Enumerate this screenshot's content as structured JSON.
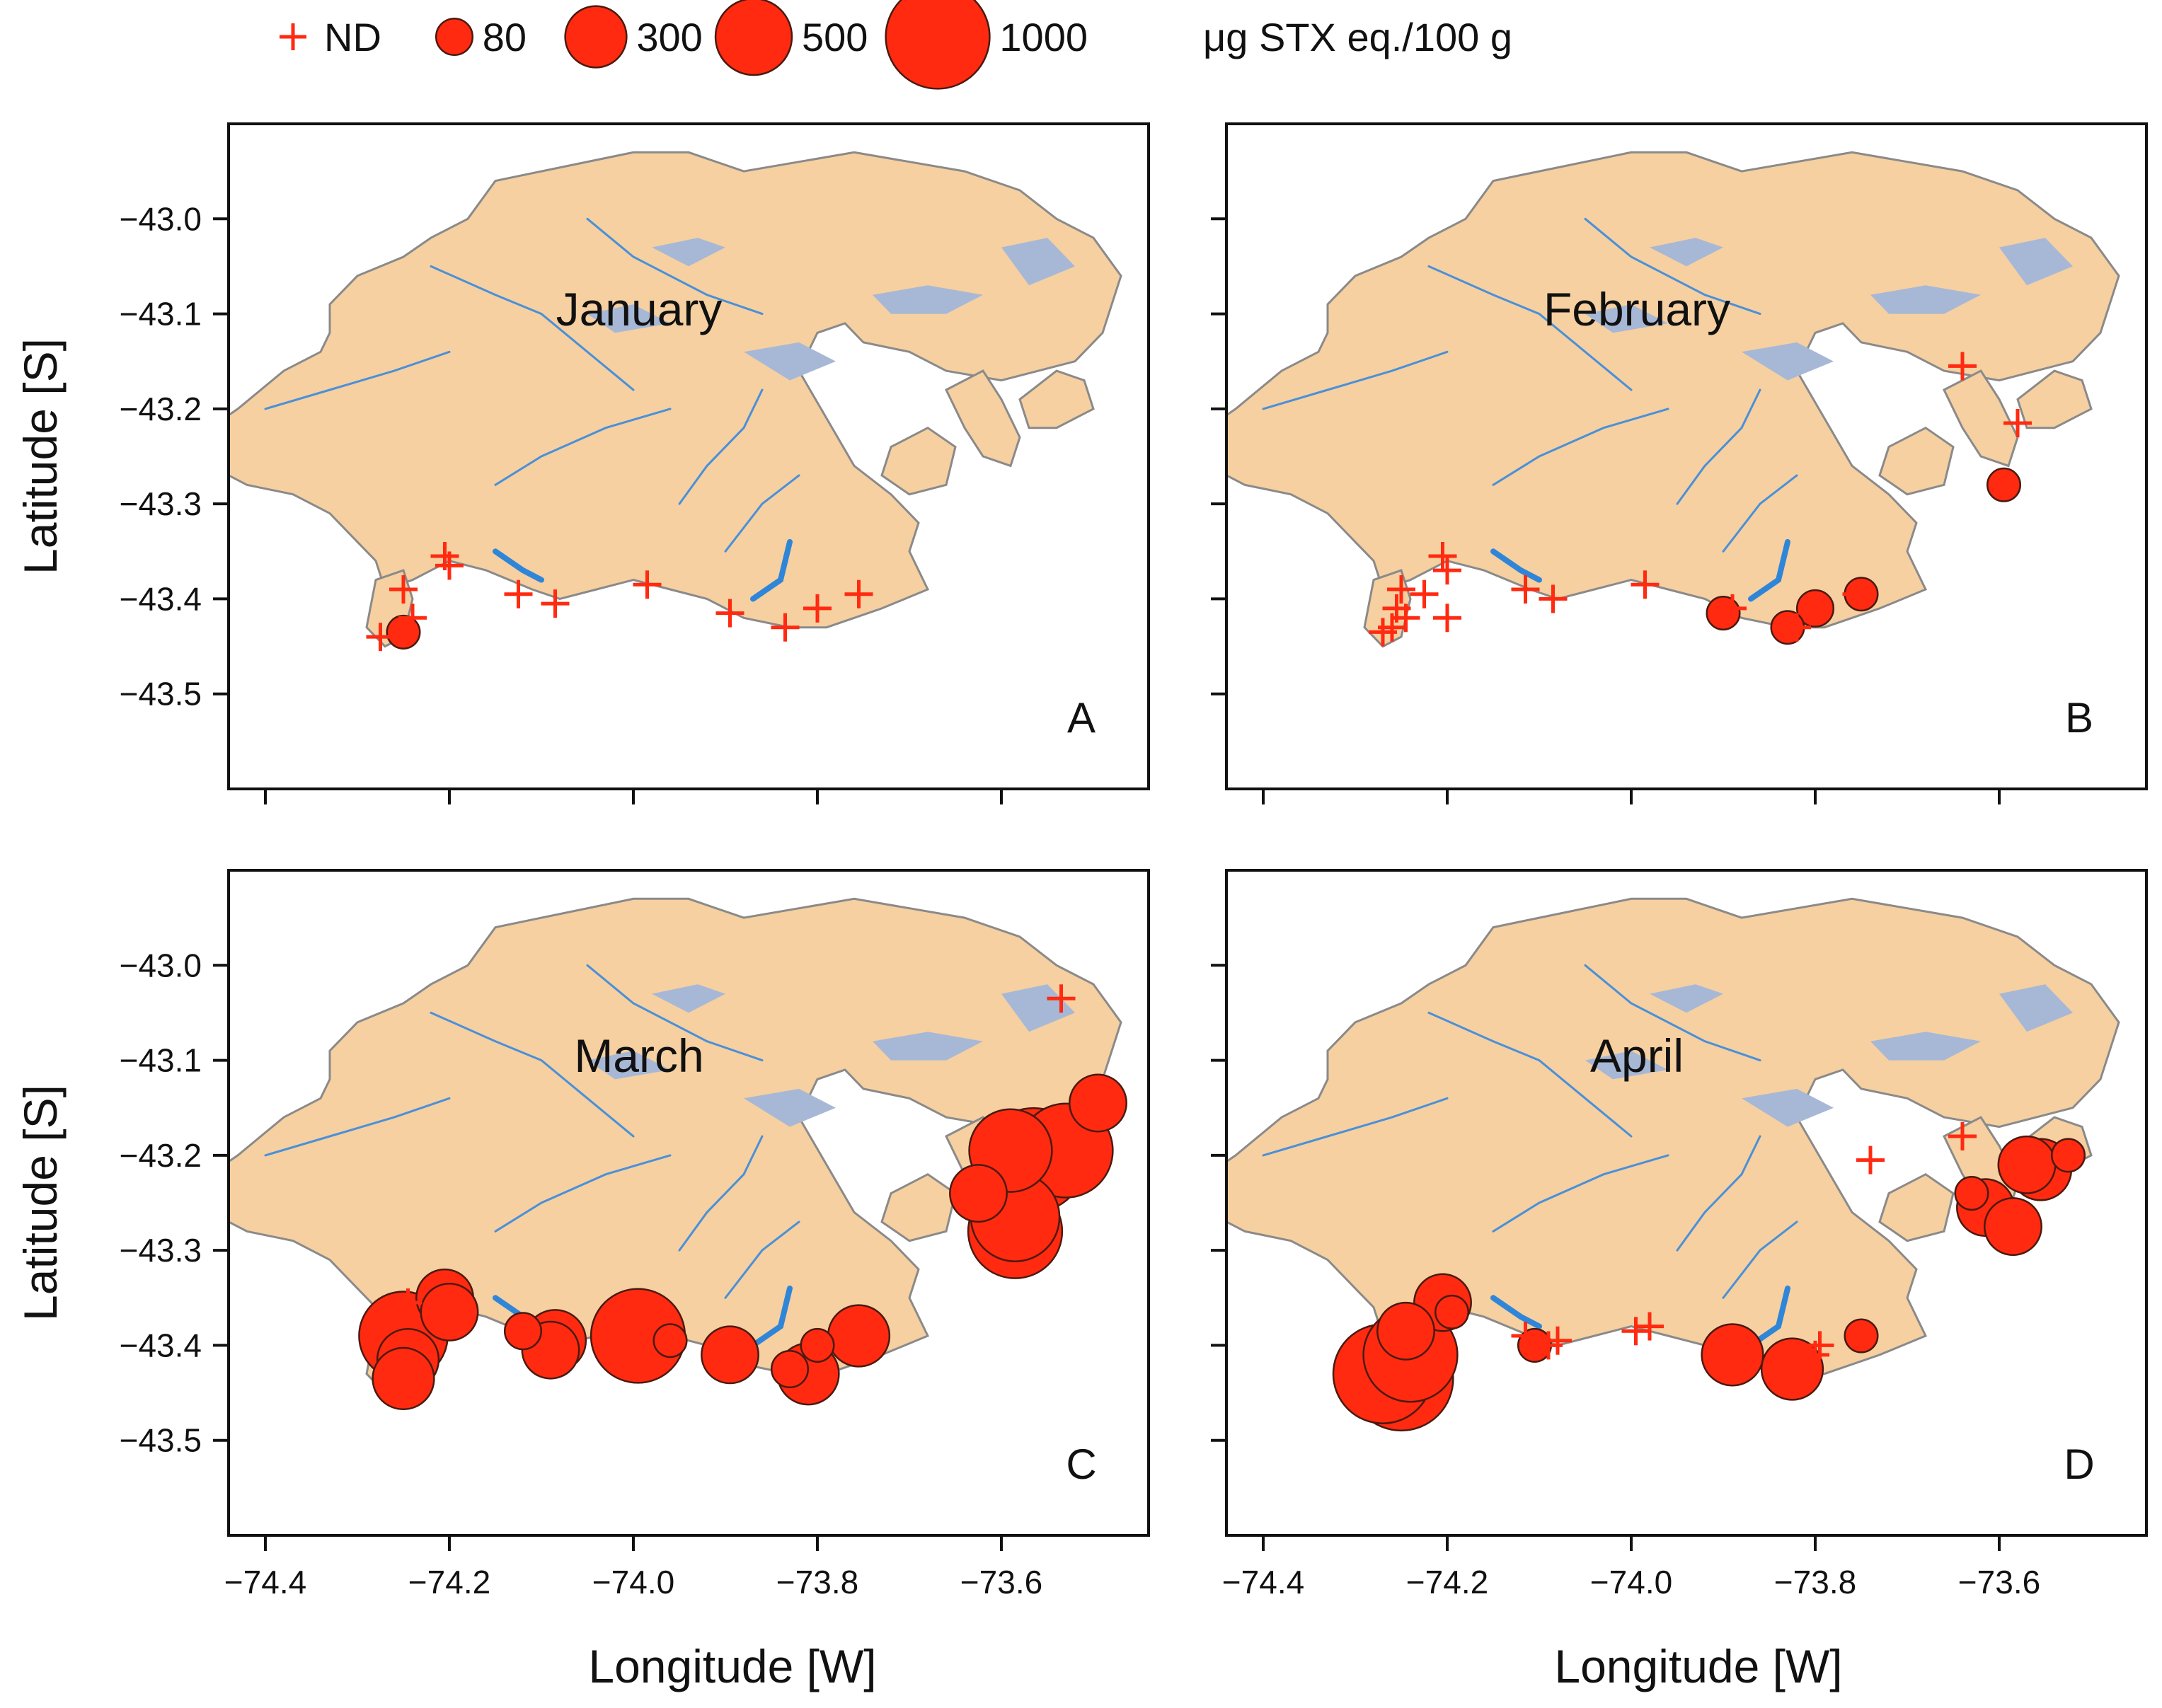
{
  "legend": {
    "nd_label": "ND",
    "size_labels": [
      "80",
      "300",
      "500",
      "1000"
    ],
    "size_values": [
      80,
      300,
      500,
      1000
    ],
    "units": "μg STX eq./100 g"
  },
  "axes": {
    "y_title": "Latitude [S]",
    "x_title": "Longitude [W]",
    "y_ticks": [
      -43.0,
      -43.1,
      -43.2,
      -43.3,
      -43.4,
      -43.5
    ],
    "y_tick_labels": [
      "−43.0",
      "−43.1",
      "−43.2",
      "−43.3",
      "−43.4",
      "−43.5"
    ],
    "x_ticks": [
      -74.4,
      -74.2,
      -74.0,
      -73.8,
      -73.6
    ],
    "x_tick_labels": [
      "−74.4",
      "−74.2",
      "−74.0",
      "−73.8",
      "−73.6"
    ],
    "xlim": [
      -74.44,
      -73.44
    ],
    "ylim": [
      -43.6,
      -42.9
    ]
  },
  "colors": {
    "land": "#f6d0a0",
    "coast": "#8a8a8a",
    "lake": "#a7b8d6",
    "river": "#4a90d9",
    "marker": "#ff2a10"
  },
  "panels": [
    {
      "letter": "A",
      "month": "January",
      "points": [
        {
          "lon": -74.275,
          "lat": -43.44,
          "nd": true
        },
        {
          "lon": -74.25,
          "lat": -43.39,
          "nd": true
        },
        {
          "lon": -74.24,
          "lat": -43.42,
          "nd": true
        },
        {
          "lon": -74.25,
          "lat": -43.435,
          "nd": false,
          "stx": 60
        },
        {
          "lon": -74.205,
          "lat": -43.355,
          "nd": true
        },
        {
          "lon": -74.2,
          "lat": -43.365,
          "nd": true
        },
        {
          "lon": -74.125,
          "lat": -43.395,
          "nd": true
        },
        {
          "lon": -74.085,
          "lat": -43.405,
          "nd": true
        },
        {
          "lon": -73.985,
          "lat": -43.385,
          "nd": true
        },
        {
          "lon": -73.895,
          "lat": -43.415,
          "nd": true
        },
        {
          "lon": -73.835,
          "lat": -43.43,
          "nd": true
        },
        {
          "lon": -73.8,
          "lat": -43.41,
          "nd": true
        },
        {
          "lon": -73.755,
          "lat": -43.395,
          "nd": true
        }
      ]
    },
    {
      "letter": "B",
      "month": "February",
      "points": [
        {
          "lon": -74.27,
          "lat": -43.435,
          "nd": true
        },
        {
          "lon": -74.26,
          "lat": -43.43,
          "nd": true
        },
        {
          "lon": -74.25,
          "lat": -43.39,
          "nd": true
        },
        {
          "lon": -74.245,
          "lat": -43.42,
          "nd": true
        },
        {
          "lon": -74.255,
          "lat": -43.41,
          "nd": true
        },
        {
          "lon": -74.225,
          "lat": -43.395,
          "nd": true
        },
        {
          "lon": -74.205,
          "lat": -43.355,
          "nd": true
        },
        {
          "lon": -74.2,
          "lat": -43.37,
          "nd": true
        },
        {
          "lon": -74.2,
          "lat": -43.42,
          "nd": true
        },
        {
          "lon": -74.115,
          "lat": -43.39,
          "nd": true
        },
        {
          "lon": -74.085,
          "lat": -43.4,
          "nd": true
        },
        {
          "lon": -73.985,
          "lat": -43.385,
          "nd": true
        },
        {
          "lon": -73.9,
          "lat": -43.415,
          "nd": false,
          "stx": 60
        },
        {
          "lon": -73.89,
          "lat": -43.41,
          "nd": true
        },
        {
          "lon": -73.83,
          "lat": -43.43,
          "nd": false,
          "stx": 60
        },
        {
          "lon": -73.82,
          "lat": -43.43,
          "nd": true
        },
        {
          "lon": -73.8,
          "lat": -43.41,
          "nd": false,
          "stx": 80
        },
        {
          "lon": -73.75,
          "lat": -43.395,
          "nd": false,
          "stx": 60
        },
        {
          "lon": -73.755,
          "lat": -43.395,
          "nd": true
        },
        {
          "lon": -73.64,
          "lat": -43.155,
          "nd": true
        },
        {
          "lon": -73.58,
          "lat": -43.215,
          "nd": true
        },
        {
          "lon": -73.595,
          "lat": -43.28,
          "nd": false,
          "stx": 60
        }
      ]
    },
    {
      "letter": "C",
      "month": "March",
      "points": [
        {
          "lon": -74.245,
          "lat": -43.355,
          "nd": true
        },
        {
          "lon": -74.25,
          "lat": -43.39,
          "nd": false,
          "stx": 700
        },
        {
          "lon": -74.245,
          "lat": -43.415,
          "nd": false,
          "stx": 300
        },
        {
          "lon": -74.25,
          "lat": -43.435,
          "nd": false,
          "stx": 300
        },
        {
          "lon": -74.205,
          "lat": -43.35,
          "nd": false,
          "stx": 250
        },
        {
          "lon": -74.2,
          "lat": -43.365,
          "nd": false,
          "stx": 250
        },
        {
          "lon": -74.12,
          "lat": -43.385,
          "nd": false,
          "stx": 80
        },
        {
          "lon": -74.085,
          "lat": -43.395,
          "nd": false,
          "stx": 300
        },
        {
          "lon": -74.09,
          "lat": -43.405,
          "nd": false,
          "stx": 250
        },
        {
          "lon": -73.995,
          "lat": -43.39,
          "nd": false,
          "stx": 800
        },
        {
          "lon": -73.96,
          "lat": -43.395,
          "nd": false,
          "stx": 60
        },
        {
          "lon": -73.895,
          "lat": -43.41,
          "nd": false,
          "stx": 250
        },
        {
          "lon": -73.83,
          "lat": -43.425,
          "nd": false,
          "stx": 80
        },
        {
          "lon": -73.81,
          "lat": -43.43,
          "nd": false,
          "stx": 300
        },
        {
          "lon": -73.8,
          "lat": -43.4,
          "nd": false,
          "stx": 60
        },
        {
          "lon": -73.755,
          "lat": -43.39,
          "nd": false,
          "stx": 300
        },
        {
          "lon": -73.535,
          "lat": -43.035,
          "nd": true
        },
        {
          "lon": -73.495,
          "lat": -43.145,
          "nd": false,
          "stx": 250
        },
        {
          "lon": -73.625,
          "lat": -43.24,
          "nd": false,
          "stx": 250
        },
        {
          "lon": -73.59,
          "lat": -43.195,
          "nd": false,
          "stx": 600
        },
        {
          "lon": -73.565,
          "lat": -43.205,
          "nd": false,
          "stx": 1000
        },
        {
          "lon": -73.53,
          "lat": -43.195,
          "nd": false,
          "stx": 800
        },
        {
          "lon": -73.585,
          "lat": -43.265,
          "nd": false,
          "stx": 700
        },
        {
          "lon": -73.585,
          "lat": -43.28,
          "nd": false,
          "stx": 800
        }
      ]
    },
    {
      "letter": "D",
      "month": "April",
      "points": [
        {
          "lon": -74.205,
          "lat": -43.355,
          "nd": false,
          "stx": 250
        },
        {
          "lon": -74.195,
          "lat": -43.365,
          "nd": false,
          "stx": 60
        },
        {
          "lon": -74.245,
          "lat": -43.385,
          "nd": false,
          "stx": 250
        },
        {
          "lon": -74.27,
          "lat": -43.43,
          "nd": false,
          "stx": 900
        },
        {
          "lon": -74.25,
          "lat": -43.435,
          "nd": false,
          "stx": 1000
        },
        {
          "lon": -74.24,
          "lat": -43.41,
          "nd": false,
          "stx": 800
        },
        {
          "lon": -74.115,
          "lat": -43.39,
          "nd": true
        },
        {
          "lon": -74.105,
          "lat": -43.4,
          "nd": false,
          "stx": 60
        },
        {
          "lon": -74.09,
          "lat": -43.4,
          "nd": true
        },
        {
          "lon": -74.08,
          "lat": -43.395,
          "nd": true
        },
        {
          "lon": -73.995,
          "lat": -43.385,
          "nd": true
        },
        {
          "lon": -73.98,
          "lat": -43.38,
          "nd": true
        },
        {
          "lon": -73.89,
          "lat": -43.41,
          "nd": false,
          "stx": 300
        },
        {
          "lon": -73.825,
          "lat": -43.425,
          "nd": false,
          "stx": 300
        },
        {
          "lon": -73.8,
          "lat": -43.41,
          "nd": true
        },
        {
          "lon": -73.795,
          "lat": -43.4,
          "nd": true
        },
        {
          "lon": -73.75,
          "lat": -43.39,
          "nd": false,
          "stx": 60
        },
        {
          "lon": -73.74,
          "lat": -43.205,
          "nd": true
        },
        {
          "lon": -73.64,
          "lat": -43.18,
          "nd": true
        },
        {
          "lon": -73.63,
          "lat": -43.24,
          "nd": false,
          "stx": 60
        },
        {
          "lon": -73.615,
          "lat": -43.255,
          "nd": false,
          "stx": 250
        },
        {
          "lon": -73.585,
          "lat": -43.275,
          "nd": false,
          "stx": 250
        },
        {
          "lon": -73.57,
          "lat": -43.21,
          "nd": false,
          "stx": 250
        },
        {
          "lon": -73.555,
          "lat": -43.215,
          "nd": false,
          "stx": 300
        },
        {
          "lon": -73.525,
          "lat": -43.2,
          "nd": false,
          "stx": 60
        }
      ]
    }
  ]
}
